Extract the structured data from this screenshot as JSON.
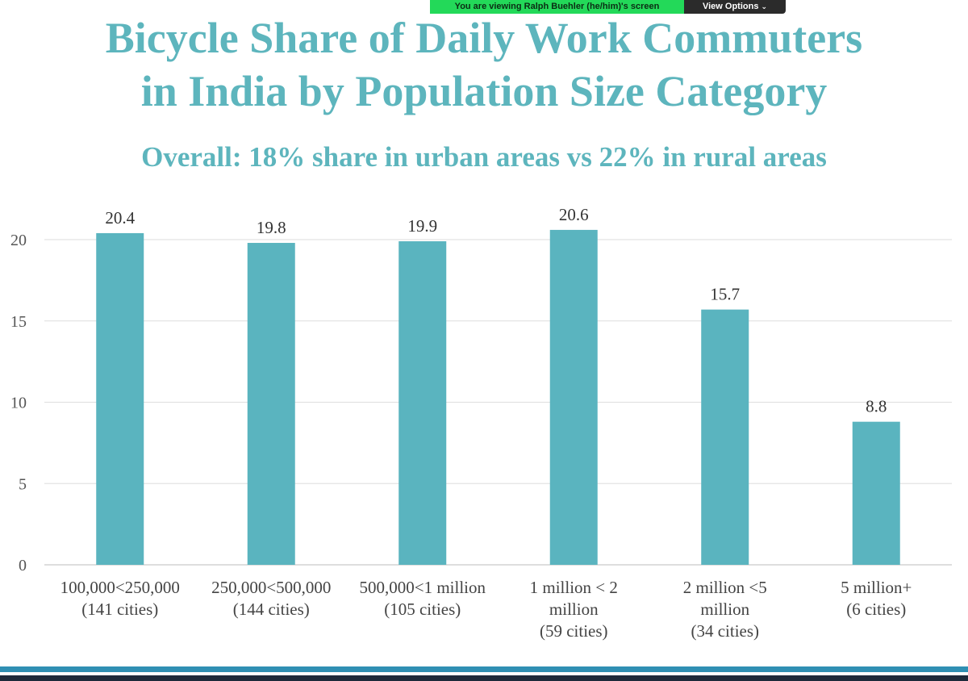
{
  "zoom_bar": {
    "viewing_text": "You are viewing Ralph Buehler (he/him)'s screen",
    "options_label": "View Options"
  },
  "slide": {
    "title_line1": "Bicycle Share of Daily Work Commuters",
    "title_line2": "in India by Population Size Category",
    "subtitle": "Overall: 18% share in urban areas vs 22% in rural areas"
  },
  "colors": {
    "accent": "#5db5bd",
    "bar": "#5ab4bf",
    "zoom_green": "#23d959",
    "footer_blue": "#2f8fb3"
  },
  "chart_data": {
    "type": "bar",
    "categories": [
      [
        "100,000<250,000",
        "(141 cities)"
      ],
      [
        "250,000<500,000",
        "(144 cities)"
      ],
      [
        "500,000<1 million",
        "(105 cities)"
      ],
      [
        "1 million < 2",
        "million",
        "(59 cities)"
      ],
      [
        "2 million <5",
        "million",
        "(34 cities)"
      ],
      [
        "5 million+",
        "(6 cities)"
      ]
    ],
    "values": [
      20.4,
      19.8,
      19.9,
      20.6,
      15.7,
      8.8
    ],
    "data_labels": [
      "20.4",
      "19.8",
      "19.9",
      "20.6",
      "15.7",
      "8.8"
    ],
    "y_ticks": [
      0,
      5,
      10,
      15,
      20
    ],
    "ylim": [
      0,
      20
    ],
    "grid": true,
    "legend": "none"
  }
}
